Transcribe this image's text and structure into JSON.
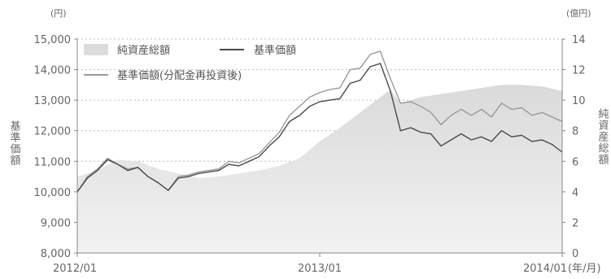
{
  "chart_data": {
    "type": "line",
    "left_axis": {
      "unit": "(円)",
      "label": "基準価額",
      "ylim": [
        8000,
        15000
      ],
      "ticks": [
        "8,000",
        "9,000",
        "10,000",
        "11,000",
        "12,000",
        "13,000",
        "14,000",
        "15,000"
      ],
      "tick_values": [
        8000,
        9000,
        10000,
        11000,
        12000,
        13000,
        14000,
        15000
      ]
    },
    "right_axis": {
      "unit": "(億円)",
      "label": "純資産総額",
      "ylim": [
        0,
        14
      ],
      "ticks": [
        "0",
        "2",
        "4",
        "6",
        "8",
        "10",
        "12",
        "14"
      ],
      "tick_values": [
        0,
        2,
        4,
        6,
        8,
        10,
        12,
        14
      ]
    },
    "x_axis": {
      "range": [
        "2012-01",
        "2014-01"
      ],
      "ticks": [
        {
          "label": "2012/01",
          "month": 0
        },
        {
          "label": "2013/01",
          "month": 12
        },
        {
          "label": "2014/01",
          "month": 24
        }
      ],
      "unit": "(年/月)"
    },
    "legend": [
      {
        "name": "純資産総額",
        "style": "area"
      },
      {
        "name": "基準価額",
        "style": "line-dark"
      },
      {
        "name": "基準価額(分配金再投資後)",
        "style": "line-light"
      }
    ],
    "series": [
      {
        "name": "純資産総額",
        "axis": "right",
        "x_month": [
          0,
          1,
          2,
          3,
          4,
          5,
          6,
          7,
          8,
          9,
          10,
          11,
          12,
          13,
          14,
          15,
          15.5,
          16,
          17,
          18,
          19,
          20,
          21,
          22,
          23,
          24
        ],
        "values": [
          5.0,
          5.4,
          6.1,
          6.0,
          5.5,
          5.2,
          4.9,
          5.0,
          5.2,
          5.4,
          5.7,
          6.2,
          7.3,
          8.2,
          9.2,
          10.2,
          10.7,
          9.8,
          10.2,
          10.4,
          10.6,
          10.8,
          11.0,
          11.0,
          10.9,
          10.6
        ]
      },
      {
        "name": "基準価額",
        "axis": "left",
        "x_month": [
          0,
          0.5,
          1,
          1.5,
          2,
          2.5,
          3,
          3.5,
          4,
          4.5,
          5,
          5.5,
          6,
          6.5,
          7,
          7.5,
          8,
          8.5,
          9,
          9.5,
          10,
          10.5,
          11,
          11.5,
          12,
          12.5,
          13,
          13.5,
          14,
          14.5,
          15,
          15.5,
          16,
          16.5,
          17,
          17.5,
          18,
          18.5,
          19,
          19.5,
          20,
          20.5,
          21,
          21.5,
          22,
          22.5,
          23,
          23.5,
          24
        ],
        "values": [
          10000,
          10450,
          10700,
          11050,
          10900,
          10700,
          10800,
          10500,
          10300,
          10050,
          10450,
          10500,
          10600,
          10650,
          10700,
          10900,
          10850,
          11000,
          11150,
          11500,
          11800,
          12300,
          12500,
          12800,
          12950,
          13000,
          13050,
          13550,
          13650,
          14100,
          14200,
          13300,
          12000,
          12100,
          11950,
          11900,
          11500,
          11700,
          11900,
          11700,
          11800,
          11650,
          12000,
          11800,
          11850,
          11650,
          11700,
          11550,
          11300
        ]
      },
      {
        "name": "基準価額(分配金再投資後)",
        "axis": "left",
        "x_month": [
          0,
          0.5,
          1,
          1.5,
          2,
          2.5,
          3,
          3.5,
          4,
          4.5,
          5,
          5.5,
          6,
          6.5,
          7,
          7.5,
          8,
          8.5,
          9,
          9.5,
          10,
          10.5,
          11,
          11.5,
          12,
          12.5,
          13,
          13.5,
          14,
          14.5,
          15,
          15.5,
          16,
          16.5,
          17,
          17.5,
          18,
          18.5,
          19,
          19.5,
          20,
          20.5,
          21,
          21.5,
          22,
          22.5,
          23,
          23.5,
          24
        ],
        "values": [
          10000,
          10500,
          10750,
          11100,
          10900,
          10750,
          10800,
          10500,
          10300,
          10050,
          10500,
          10550,
          10650,
          10700,
          10750,
          11000,
          10950,
          11100,
          11250,
          11600,
          11950,
          12500,
          12800,
          13100,
          13250,
          13350,
          13400,
          14000,
          14050,
          14500,
          14600,
          13700,
          12900,
          12950,
          12800,
          12600,
          12200,
          12500,
          12700,
          12500,
          12700,
          12450,
          12900,
          12700,
          12750,
          12500,
          12600,
          12450,
          12300
        ]
      }
    ]
  }
}
